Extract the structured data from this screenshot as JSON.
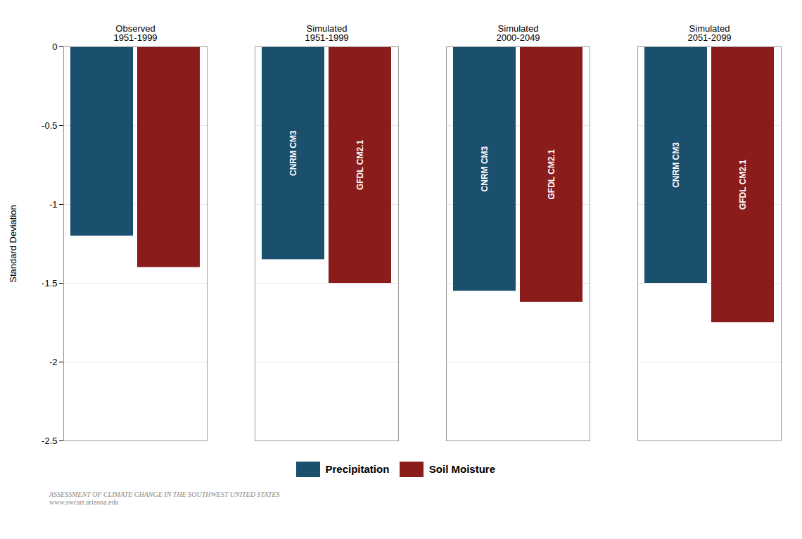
{
  "chart_data": {
    "type": "bar",
    "categories": [
      "Observed\n1951-1999",
      "Simulated\n1951-1999",
      "Simulated\n2000-2049",
      "Simulated\n2051-2099"
    ],
    "series": [
      {
        "name": "Precipitation",
        "color": "#1b4f6e",
        "values": [
          -1.2,
          -1.35,
          -1.55,
          -1.5
        ]
      },
      {
        "name": "Soil Moisture",
        "color": "#8b1c1c",
        "values": [
          -1.4,
          -1.5,
          -1.62,
          -1.75
        ]
      }
    ],
    "ylabel": "Standard Deviation",
    "ylim": [
      -2.5,
      0.0
    ],
    "yticks": [
      0,
      -0.5,
      -1,
      -1.5,
      -2,
      -2.5
    ],
    "grid": true,
    "legend": "bottom",
    "annotations": [
      {
        "text": "CNRM CM3",
        "category": "Simulated\n1951-1999",
        "series": "Precipitation"
      },
      {
        "text": "GFDL CM2.1",
        "category": "Simulated\n1951-1999",
        "series": "Soil Moisture"
      },
      {
        "text": "CNRM CM3",
        "category": "Simulated\n2000-2049",
        "series": "Precipitation"
      },
      {
        "text": "GFDL CM2.1",
        "category": "Simulated\n2000-2049",
        "series": "Soil Moisture"
      },
      {
        "text": "CNRM CM3",
        "category": "Simulated\n2051-2099",
        "series": "Precipitation"
      },
      {
        "text": "GFDL CM2.1",
        "category": "Simulated\n2051-2099",
        "series": "Soil Moisture"
      }
    ],
    "footer": [
      "ASSESSMENT OF CLIMATE CHANGE IN THE SOUTHWEST UNITED STATES",
      "www.swcarr.arizona.edu"
    ]
  }
}
